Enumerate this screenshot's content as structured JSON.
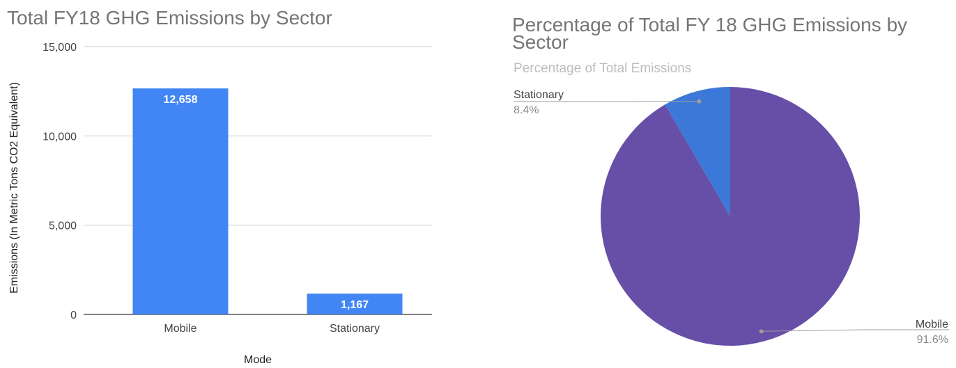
{
  "colors": {
    "bar": "#4285f4",
    "mobile": "#674ea7",
    "stationary": "#3c78d8"
  },
  "chart_data": [
    {
      "type": "bar",
      "title": "Total FY18 GHG Emissions by Sector",
      "xlabel": "Mode",
      "ylabel": "Emissions (In Metric Tons CO2 Equivalent)",
      "categories": [
        "Mobile",
        "Stationary"
      ],
      "values": [
        12658,
        1167
      ],
      "data_labels": [
        "12,658",
        "1,167"
      ],
      "ylim": [
        0,
        15000
      ],
      "yticks": [
        0,
        5000,
        10000,
        15000
      ],
      "ytick_labels": [
        "0",
        "5,000",
        "10,000",
        "15,000"
      ],
      "grid": true
    },
    {
      "type": "pie",
      "title_lines": [
        "Percentage of Total FY 18 GHG Emissions by",
        "Sector"
      ],
      "subtitle": "Percentage of Total Emissions",
      "slices": [
        {
          "name": "Mobile",
          "value": 91.6,
          "label": "91.6%"
        },
        {
          "name": "Stationary",
          "value": 8.4,
          "label": "8.4%"
        }
      ]
    }
  ]
}
